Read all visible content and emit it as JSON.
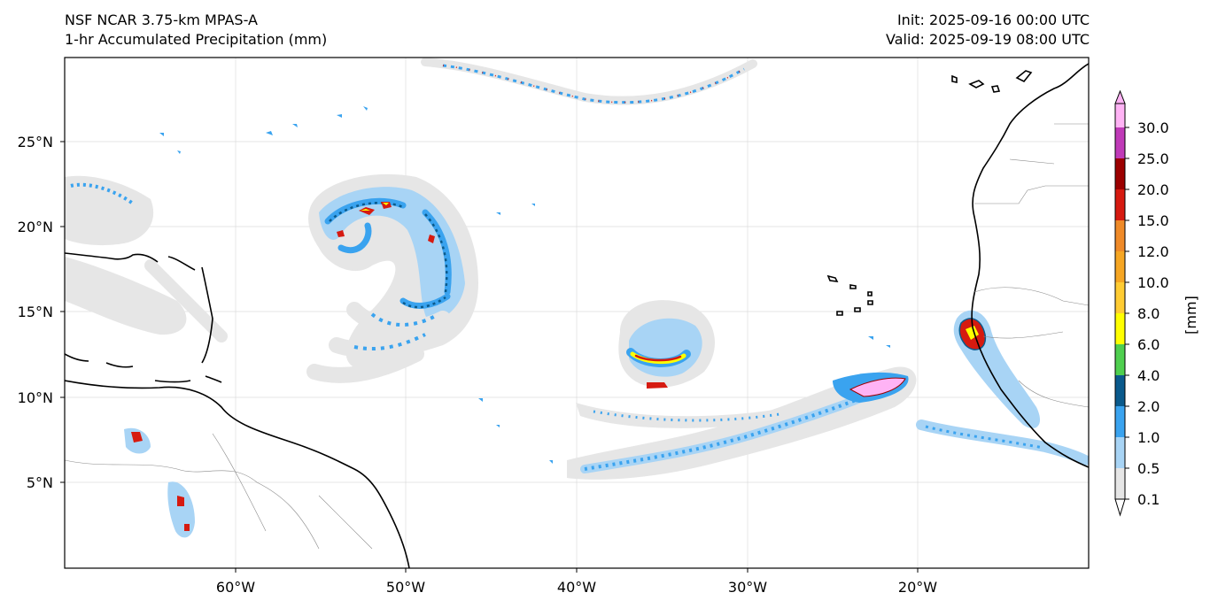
{
  "header": {
    "model": "NSF NCAR 3.75-km MPAS-A",
    "field": "1-hr Accumulated Precipitation (mm)",
    "init": "Init: 2025-09-16 00:00 UTC",
    "valid": "Valid: 2025-09-19 08:00 UTC"
  },
  "map": {
    "lat_labels": [
      "25°N",
      "20°N",
      "15°N",
      "10°N",
      "5°N"
    ],
    "lon_labels": [
      "60°W",
      "50°W",
      "40°W",
      "30°W",
      "20°W"
    ]
  },
  "colorbar": {
    "unit_label": "[mm]",
    "levels": [
      "0.1",
      "0.5",
      "1.0",
      "2.0",
      "4.0",
      "6.0",
      "8.0",
      "10.0",
      "12.0",
      "15.0",
      "20.0",
      "25.0",
      "30.0"
    ],
    "colors": [
      "#e6e6e6",
      "#a8d4f5",
      "#3aa3ef",
      "#0a5a8c",
      "#4fcf4f",
      "#ffff00",
      "#ffcc33",
      "#f6a623",
      "#ef8a28",
      "#d61a10",
      "#9c0000",
      "#c03ab8",
      "#ffb3f5"
    ]
  }
}
